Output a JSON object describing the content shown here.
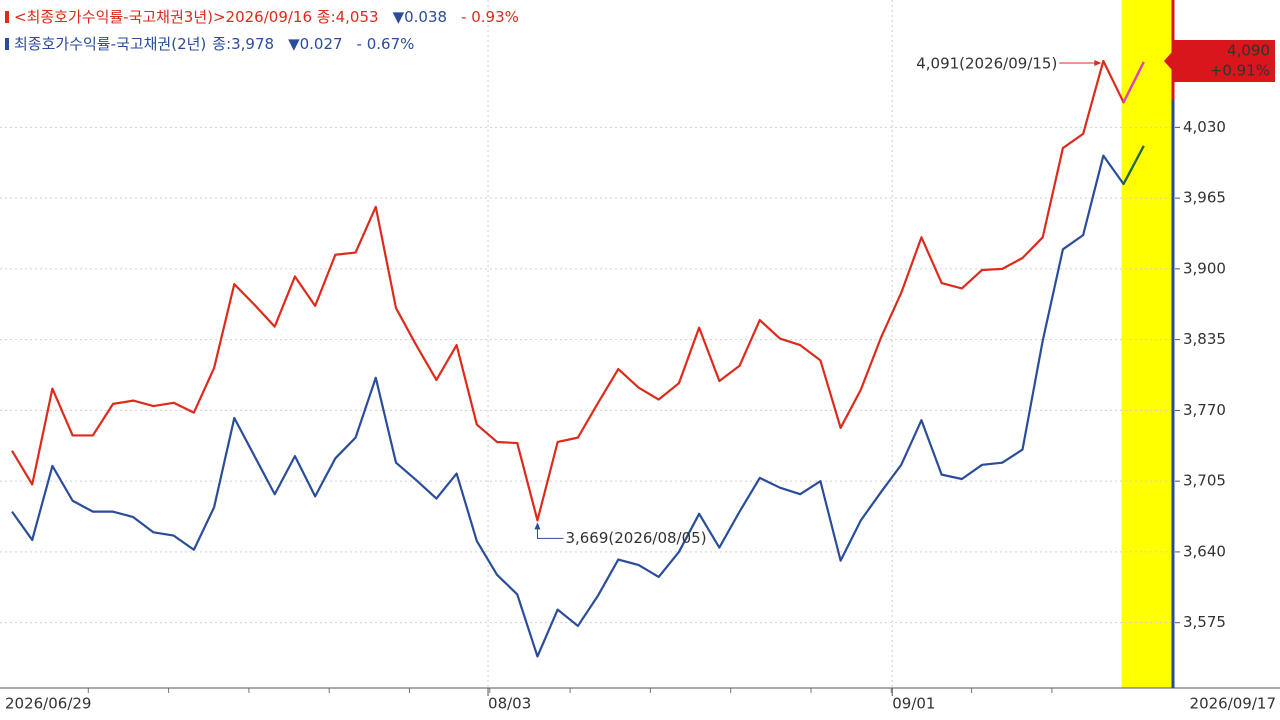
{
  "chart_data": {
    "type": "line",
    "legend": [
      {
        "name": "<최종호가수익률-국고채권3년)>",
        "info": [
          "2026/09/16 종:4,053",
          "▼0.038",
          "- 0.93%"
        ]
      },
      {
        "name": "최종호가수익률-국고채권(2년)",
        "info": [
          "종:3,978",
          "▼0.027",
          "- 0.67%"
        ]
      }
    ],
    "categories": [
      "2026/06/29",
      null,
      null,
      null,
      null,
      null,
      null,
      null,
      null,
      null,
      null,
      null,
      null,
      null,
      null,
      null,
      null,
      null,
      null,
      null,
      null,
      null,
      null,
      null,
      "08/03",
      null,
      null,
      null,
      null,
      null,
      null,
      null,
      null,
      null,
      null,
      null,
      null,
      null,
      null,
      null,
      null,
      null,
      null,
      null,
      "09/01",
      null,
      null,
      null,
      null,
      null,
      null,
      null,
      null,
      null,
      null,
      null,
      "2026/09/17"
    ],
    "series": [
      {
        "name": "국고채권3년",
        "color": "#dd2a1b",
        "last_segment_color": "#e040c8",
        "values": [
          3733,
          3702,
          3790,
          3747,
          3747,
          3776,
          3779,
          3774,
          3777,
          3768,
          3809,
          3886,
          3867,
          3847,
          3893,
          3866,
          3913,
          3915,
          3957,
          3864,
          3830,
          3798,
          3830,
          3757,
          3741,
          3740,
          3669,
          3741,
          3745,
          3777,
          3808,
          3791,
          3780,
          3795,
          3846,
          3797,
          3811,
          3853,
          3836,
          3830,
          3816,
          3754,
          3789,
          3837,
          3878,
          3929,
          3887,
          3882,
          3899,
          3900,
          3910,
          3929,
          4011,
          4024,
          4091,
          4053,
          4090
        ]
      },
      {
        "name": "국고채권2년",
        "color": "#2a4d9b",
        "last_segment_color": "#1f6b3a",
        "values": [
          3677,
          3651,
          3719,
          3687,
          3677,
          3677,
          3672,
          3658,
          3655,
          3642,
          3681,
          3763,
          3728,
          3693,
          3728,
          3691,
          3726,
          3745,
          3800,
          3722,
          3706,
          3689,
          3712,
          3650,
          3619,
          3601,
          3544,
          3587,
          3572,
          3600,
          3633,
          3628,
          3617,
          3640,
          3675,
          3644,
          3677,
          3708,
          3699,
          3693,
          3705,
          3632,
          3669,
          3695,
          3720,
          3761,
          3711,
          3707,
          3720,
          3722,
          3734,
          3834,
          3918,
          3931,
          4004,
          3978,
          4013
        ]
      }
    ],
    "annotations": {
      "max": "4,091(2026/09/15)",
      "min": "3,669(2026/08/05)"
    },
    "current_label": {
      "value": "4,090",
      "change": "+0.91%",
      "color": "#d8161b"
    },
    "cursor_color": "#ffff00",
    "ylim": [
      3515,
      4147
    ],
    "yticks": [
      {
        "value": 3575,
        "label": "3,575"
      },
      {
        "value": 3640,
        "label": "3,640"
      },
      {
        "value": 3705,
        "label": "3,705"
      },
      {
        "value": 3770,
        "label": "3,770"
      },
      {
        "value": 3835,
        "label": "3,835"
      },
      {
        "value": 3900,
        "label": "3,900"
      },
      {
        "value": 3965,
        "label": "3,965"
      },
      {
        "value": 4030,
        "label": "4,030"
      }
    ],
    "grid": true
  }
}
